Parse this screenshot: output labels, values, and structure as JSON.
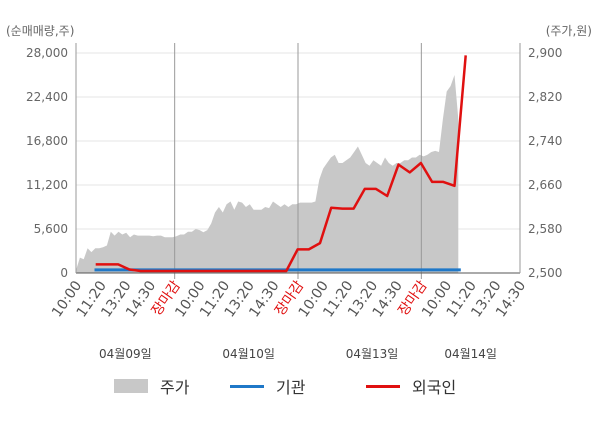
{
  "units": {
    "left": "(순매매량,주)",
    "right": "(주가,원)"
  },
  "colors": {
    "price": "#c8c8c8",
    "institution": "#1f78c8",
    "foreign": "#e01010",
    "marker": "#e01010",
    "axis": "#666666"
  },
  "legend": [
    {
      "label": "주가",
      "color": "#c8c8c8",
      "shape": "area"
    },
    {
      "label": "기관",
      "color": "#1f78c8",
      "shape": "line"
    },
    {
      "label": "외국인",
      "color": "#e01010",
      "shape": "line"
    }
  ],
  "chart_data": {
    "type": "line",
    "left_axis": {
      "ticks": [
        0,
        5600,
        11200,
        16800,
        22400,
        28000
      ],
      "tick_labels": [
        "0",
        "5,600",
        "11,200",
        "16,800",
        "22,400",
        "28,000"
      ],
      "ylim": [
        0,
        28000
      ]
    },
    "right_axis": {
      "ticks": [
        2500,
        2580,
        2660,
        2740,
        2820,
        2900
      ],
      "tick_labels": [
        "2,500",
        "2,580",
        "2,660",
        "2,740",
        "2,820",
        "2,900"
      ],
      "ylim": [
        2500,
        2900
      ]
    },
    "x_ticks": [
      "10:00",
      "11:20",
      "13:20",
      "14:30",
      "장마감",
      "10:00",
      "11:20",
      "13:20",
      "14:30",
      "장마감",
      "10:00",
      "11:20",
      "13:20",
      "14:30",
      "장마감",
      "10:00",
      "11:20",
      "13:20",
      "14:30"
    ],
    "x_tick_highlight": [
      false,
      false,
      false,
      false,
      true,
      false,
      false,
      false,
      false,
      true,
      false,
      false,
      false,
      false,
      true,
      false,
      false,
      false,
      false
    ],
    "day_labels": [
      {
        "label": "04월09일",
        "slot": 2
      },
      {
        "label": "04월10일",
        "slot": 7
      },
      {
        "label": "04월13일",
        "slot": 12
      },
      {
        "label": "04월14일",
        "slot": 16
      }
    ],
    "day_separators": [
      4,
      9,
      14
    ],
    "series": [
      {
        "name": "주가",
        "axis": "right",
        "values": [
          2505,
          2528,
          2525,
          2545,
          2538,
          2545,
          2545,
          2547,
          2550,
          2575,
          2568,
          2575,
          2570,
          2573,
          2565,
          2570,
          2568,
          2568,
          2568,
          2568,
          2567,
          2568,
          2568,
          2565,
          2565,
          2565,
          2567,
          2570,
          2570,
          2575,
          2575,
          2580,
          2578,
          2574,
          2578,
          2590,
          2610,
          2620,
          2610,
          2625,
          2630,
          2615,
          2630,
          2628,
          2620,
          2625,
          2615,
          2615,
          2615,
          2620,
          2618,
          2630,
          2625,
          2620,
          2625,
          2620,
          2625,
          2625,
          2628,
          2628,
          2628,
          2628,
          2630,
          2670,
          2690,
          2700,
          2710,
          2715,
          2700,
          2700,
          2705,
          2710,
          2720,
          2730,
          2715,
          2700,
          2695,
          2705,
          2700,
          2695,
          2710,
          2700,
          2695,
          2700,
          2700,
          2705,
          2705,
          2710,
          2710,
          2715,
          2712,
          2715,
          2720,
          2722,
          2720,
          2780,
          2830,
          2840,
          2860,
          2780
        ]
      },
      {
        "name": "기관",
        "axis": "left",
        "values": [
          400,
          400,
          400,
          400,
          400,
          400,
          400,
          400,
          400,
          400,
          400,
          400,
          400,
          400,
          400,
          400,
          400,
          400,
          400,
          400,
          400,
          400,
          400,
          400,
          400,
          400,
          400,
          400,
          400,
          400,
          400,
          400,
          400,
          400,
          400,
          400,
          400,
          400,
          400,
          400,
          400,
          400,
          400,
          400,
          400,
          400,
          400,
          400,
          400,
          400,
          400,
          400,
          400,
          400,
          400,
          400,
          400,
          400,
          400,
          400,
          400,
          400,
          400,
          400,
          400,
          400,
          400,
          400,
          400,
          400,
          400,
          400,
          400,
          400,
          400,
          400,
          400,
          400,
          400,
          400,
          400,
          400,
          400,
          400,
          400,
          400,
          400,
          400,
          400,
          400,
          400,
          400,
          400,
          400,
          400,
          400,
          400,
          400,
          400,
          400
        ]
      },
      {
        "name": "외국인",
        "axis": "left",
        "values": [
          1100,
          1100,
          1100,
          450,
          250,
          250,
          250,
          250,
          250,
          250,
          250,
          250,
          250,
          250,
          250,
          250,
          250,
          250,
          3000,
          3000,
          3800,
          8300,
          8200,
          8200,
          10700,
          10700,
          9800,
          13800,
          12800,
          14000,
          11600,
          11600,
          11100,
          27700
        ]
      }
    ]
  }
}
